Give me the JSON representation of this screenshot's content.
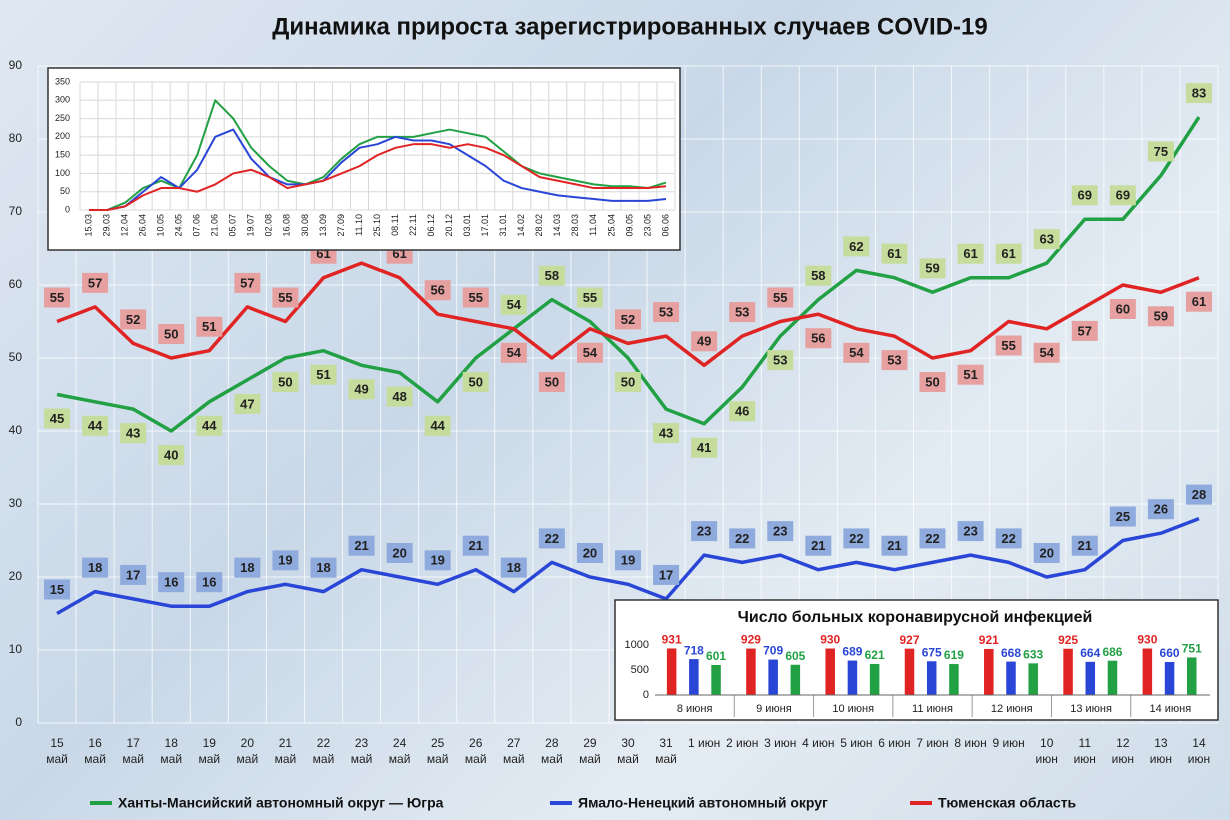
{
  "chart_data": [
    {
      "type": "line",
      "title": "Динамика прироста зарегистрированных случаев COVID-19",
      "categories": [
        "15 май",
        "16 май",
        "17 май",
        "18 май",
        "19 май",
        "20 май",
        "21 май",
        "22 май",
        "23 май",
        "24 май",
        "25 май",
        "26 май",
        "27 май",
        "28 май",
        "29 май",
        "30 май",
        "31 май",
        "1 июн",
        "2 июн",
        "3 июн",
        "4 июн",
        "5 июн",
        "6 июн",
        "7 июн",
        "8 июн",
        "9 июн",
        "10 июн",
        "11 июн",
        "12 июн",
        "13 июн",
        "14 июн"
      ],
      "series": [
        {
          "name": "Ханты-Мансийский автономный округ — Югра",
          "color": "#21a044",
          "label_color": "#c6dc9c",
          "values": [
            45,
            44,
            43,
            40,
            44,
            47,
            50,
            51,
            49,
            48,
            44,
            50,
            54,
            58,
            55,
            50,
            43,
            41,
            46,
            53,
            58,
            62,
            61,
            59,
            61,
            61,
            63,
            69,
            69,
            75,
            83
          ]
        },
        {
          "name": "Ямало-Ненецкий автономный округ",
          "color": "#2a46d6",
          "label_color": "#8faadc",
          "values": [
            15,
            18,
            17,
            16,
            16,
            18,
            19,
            18,
            21,
            20,
            19,
            21,
            18,
            22,
            20,
            19,
            17,
            23,
            22,
            23,
            21,
            22,
            21,
            22,
            23,
            22,
            20,
            21,
            25,
            26,
            28
          ]
        },
        {
          "name": "Тюменская область",
          "color": "#e02424",
          "label_color": "#e6a0a0",
          "values": [
            55,
            57,
            52,
            50,
            51,
            57,
            55,
            61,
            63,
            61,
            56,
            55,
            54,
            50,
            54,
            52,
            53,
            49,
            53,
            55,
            56,
            54,
            53,
            50,
            51,
            55,
            54,
            57,
            60,
            59,
            61
          ]
        }
      ],
      "ylim": [
        0,
        90
      ],
      "yticks": [
        0,
        10,
        20,
        30,
        40,
        50,
        60,
        70,
        80,
        90
      ],
      "grid": true,
      "legend": "bottom"
    },
    {
      "type": "line",
      "categories": [
        "15.03",
        "29.03",
        "12.04",
        "26.04",
        "10.05",
        "24.05",
        "07.06",
        "21.06",
        "05.07",
        "19.07",
        "02.08",
        "16.08",
        "30.08",
        "13.09",
        "27.09",
        "11.10",
        "25.10",
        "08.11",
        "22.11",
        "06.12",
        "20.12",
        "03.01",
        "17.01",
        "31.01",
        "14.02",
        "28.02",
        "14.03",
        "28.03",
        "11.04",
        "25.04",
        "09.05",
        "23.05",
        "06.06"
      ],
      "series": [
        {
          "color": "#21a044",
          "values": [
            0,
            0,
            20,
            60,
            80,
            60,
            150,
            300,
            250,
            170,
            120,
            80,
            70,
            90,
            140,
            180,
            200,
            200,
            200,
            210,
            220,
            210,
            200,
            160,
            120,
            100,
            90,
            80,
            70,
            65,
            65,
            60,
            75
          ]
        },
        {
          "color": "#2a46d6",
          "values": [
            0,
            0,
            10,
            50,
            90,
            60,
            110,
            200,
            220,
            140,
            90,
            70,
            70,
            80,
            130,
            170,
            180,
            200,
            190,
            190,
            180,
            150,
            120,
            80,
            60,
            50,
            40,
            35,
            30,
            25,
            25,
            25,
            30
          ]
        },
        {
          "color": "#e02424",
          "values": [
            0,
            0,
            10,
            40,
            60,
            60,
            50,
            70,
            100,
            110,
            90,
            60,
            70,
            80,
            100,
            120,
            150,
            170,
            180,
            180,
            170,
            180,
            170,
            150,
            120,
            90,
            80,
            70,
            60,
            60,
            60,
            60,
            65
          ]
        }
      ],
      "ylim": [
        0,
        350
      ],
      "yticks": [
        0,
        50,
        100,
        150,
        200,
        250,
        300,
        350
      ],
      "grid": true
    },
    {
      "type": "bar",
      "title": "Число больных коронавирусной  инфекцией",
      "categories": [
        "8 июня",
        "9 июня",
        "10 июня",
        "11 июня",
        "12 июня",
        "13 июня",
        "14 июня"
      ],
      "series": [
        {
          "color": "#e02424",
          "values": [
            931,
            929,
            930,
            927,
            921,
            925,
            930
          ]
        },
        {
          "color": "#2a46d6",
          "values": [
            718,
            709,
            689,
            675,
            668,
            664,
            660
          ]
        },
        {
          "color": "#21a044",
          "values": [
            601,
            605,
            621,
            619,
            633,
            686,
            751
          ]
        }
      ],
      "ylim": [
        0,
        1000
      ],
      "yticks": [
        0,
        500,
        1000
      ]
    }
  ]
}
